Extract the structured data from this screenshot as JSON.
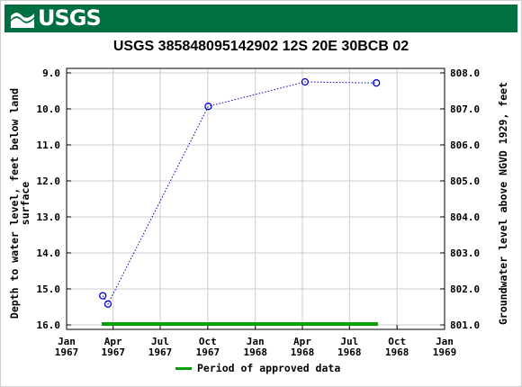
{
  "header": {
    "logo_text": "USGS",
    "logo_icon": "usgs-wave-icon",
    "brand_color": "#006f41"
  },
  "chart_data": {
    "type": "line",
    "title": "USGS 385848095142902 12S 20E 30BCB 02",
    "ylabel_left": "Depth to water level, feet below land surface",
    "ylabel_right": "Groundwater level above NGVD 1929, feet",
    "y_left_range": [
      9.0,
      16.0
    ],
    "y_left_ticks": [
      "9.0",
      "10.0",
      "11.0",
      "12.0",
      "13.0",
      "14.0",
      "15.0",
      "16.0"
    ],
    "y_right_ticks": [
      "808.0",
      "807.0",
      "806.0",
      "805.0",
      "804.0",
      "803.0",
      "802.0",
      "801.0"
    ],
    "x_range": [
      "1967-01-01",
      "1969-01-01"
    ],
    "x_ticks": [
      {
        "date": "1967-01-01",
        "line1": "Jan",
        "line2": "1967"
      },
      {
        "date": "1967-04-01",
        "line1": "Apr",
        "line2": "1967"
      },
      {
        "date": "1967-07-01",
        "line1": "Jul",
        "line2": "1967"
      },
      {
        "date": "1967-10-01",
        "line1": "Oct",
        "line2": "1967"
      },
      {
        "date": "1968-01-01",
        "line1": "Jan",
        "line2": "1968"
      },
      {
        "date": "1968-04-01",
        "line1": "Apr",
        "line2": "1968"
      },
      {
        "date": "1968-07-01",
        "line1": "Jul",
        "line2": "1968"
      },
      {
        "date": "1968-10-01",
        "line1": "Oct",
        "line2": "1968"
      },
      {
        "date": "1969-01-01",
        "line1": "Jan",
        "line2": "1969"
      }
    ],
    "series": [
      {
        "color": "#0000cc",
        "points": [
          {
            "x": "1967-03-12",
            "y": 15.19
          },
          {
            "x": "1967-03-22",
            "y": 15.42
          },
          {
            "x": "1967-10-02",
            "y": 9.93
          },
          {
            "x": "1968-04-06",
            "y": 9.25
          },
          {
            "x": "1968-08-22",
            "y": 9.28
          }
        ]
      }
    ],
    "approved_period": {
      "start": "1967-03-10",
      "end": "1968-08-25",
      "color": "#00a000"
    },
    "legend": {
      "label": "Period of approved data",
      "placement": "bottom"
    },
    "grid": true
  }
}
